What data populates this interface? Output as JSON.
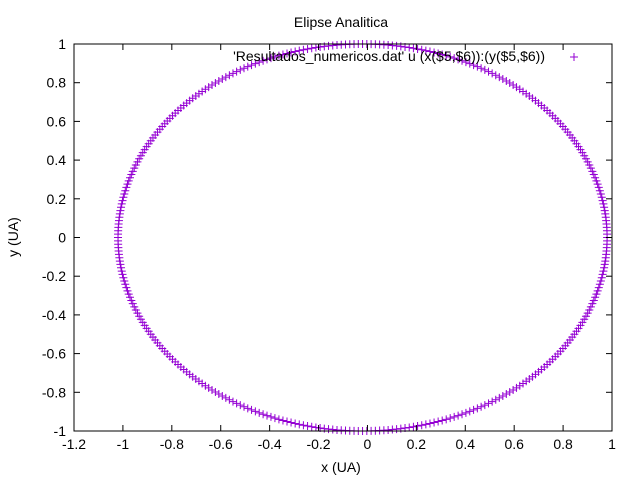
{
  "chart_data": {
    "type": "scatter",
    "title": "Elipse Analitica",
    "xlabel": "x (UA)",
    "ylabel": "y (UA)",
    "xlim": [
      -1.2,
      1.0
    ],
    "ylim": [
      -1.0,
      1.0
    ],
    "xticks": [
      -1.2,
      -1,
      -0.8,
      -0.6,
      -0.4,
      -0.2,
      0,
      0.2,
      0.4,
      0.6,
      0.8,
      1
    ],
    "xtick_labels": [
      "-1.2",
      "-1",
      "-0.8",
      "-0.6",
      "-0.4",
      "-0.2",
      "0",
      "0.2",
      "0.4",
      "0.6",
      "0.8",
      "1"
    ],
    "yticks": [
      -1,
      -0.8,
      -0.6,
      -0.4,
      -0.2,
      0,
      0.2,
      0.4,
      0.6,
      0.8,
      1
    ],
    "ytick_labels": [
      "-1",
      "-0.8",
      "-0.6",
      "-0.4",
      "-0.2",
      "0",
      "0.2",
      "0.4",
      "0.6",
      "0.8",
      "1"
    ],
    "grid": false,
    "legend_position": "top-right",
    "marker": "plus",
    "color": "#9400d3",
    "series": [
      {
        "name": "'Resultados_numericos.dat' u (x($5,$6)):(y($5,$6))",
        "shape": "ellipse",
        "center": [
          -0.02,
          0.0
        ],
        "semi_axis_x": 1.0,
        "semi_axis_y": 1.0,
        "x_extent": [
          -1.02,
          0.98
        ],
        "y_extent": [
          -1.0,
          1.0
        ],
        "num_points": 360
      }
    ]
  }
}
